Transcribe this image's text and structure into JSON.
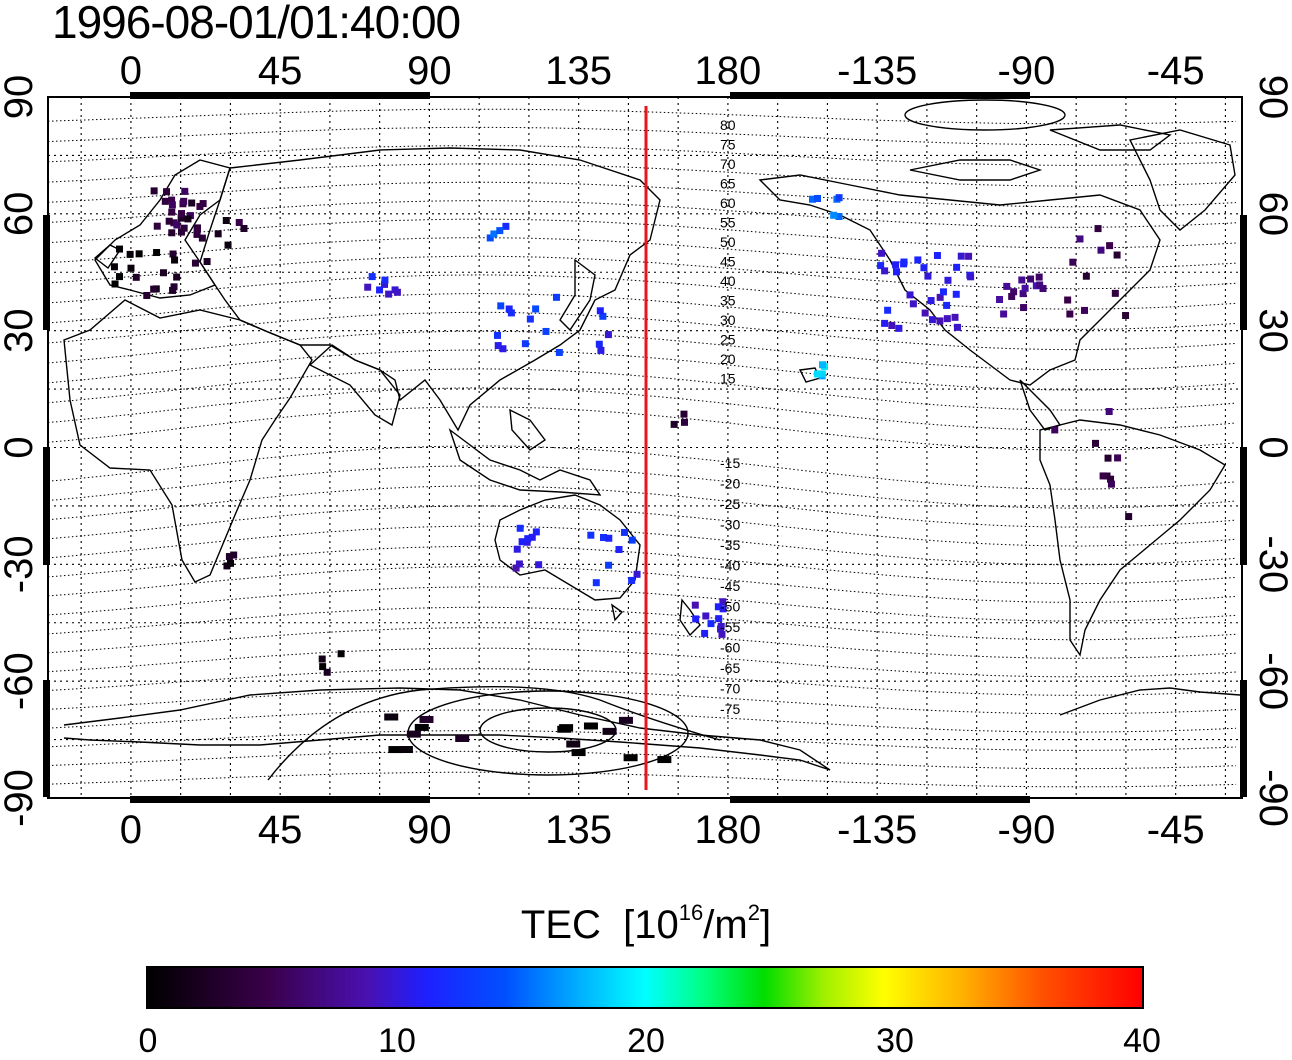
{
  "timestamp": "1996-08-01/01:40:00",
  "map": {
    "projection": "equirectangular",
    "center_longitude": 143,
    "terminator_longitude": 155,
    "terminator_color": "#e8141e",
    "top_lon_labels": [
      "0",
      "45",
      "90",
      "135",
      "180",
      "-135",
      "-90",
      "-45"
    ],
    "bottom_lon_labels": [
      "0",
      "45",
      "90",
      "135",
      "180",
      "-135",
      "-90",
      "-45"
    ],
    "left_lat_labels": [
      "90",
      "60",
      "30",
      "0",
      "-30",
      "-60",
      "-90"
    ],
    "right_lat_labels": [
      "90",
      "60",
      "30",
      "0",
      "-30",
      "-60",
      "-90"
    ],
    "contour_labels_north": [
      "80",
      "75",
      "70",
      "65",
      "60",
      "55",
      "50",
      "45",
      "40",
      "35",
      "30",
      "25",
      "20",
      "15"
    ],
    "contour_labels_south": [
      "-15",
      "-20",
      "-25",
      "-30",
      "-35",
      "-40",
      "-45",
      "-50",
      "-55",
      "-60",
      "-65",
      "-70",
      "-75"
    ]
  },
  "colorbar": {
    "title": "TEC",
    "unit_base": "[10",
    "unit_exp": "16",
    "unit_mid": "/m",
    "unit_exp2": "2",
    "unit_end": "]",
    "ticks": [
      "0",
      "10",
      "20",
      "30",
      "40"
    ],
    "range": [
      0,
      40
    ],
    "colormap": "jet-like"
  },
  "chart_data": {
    "type": "heatmap",
    "title": "1996-08-01/01:40:00",
    "xlabel": "",
    "ylabel": "",
    "xlim_lon": [
      -25,
      335
    ],
    "ylim_lat": [
      -90,
      90
    ],
    "value_label": "TEC [10^16/m^2]",
    "clusters": [
      {
        "lon": 15,
        "lat": 60,
        "count": 24,
        "spread_lon": 8,
        "spread_lat": 7,
        "tec": 4
      },
      {
        "lon": 5,
        "lat": 45,
        "count": 18,
        "spread_lon": 10,
        "spread_lat": 6,
        "tec": 1.5
      },
      {
        "lon": 25,
        "lat": 52,
        "count": 10,
        "spread_lon": 10,
        "spread_lat": 8,
        "tec": 3
      },
      {
        "lon": 75,
        "lat": 40,
        "count": 8,
        "spread_lon": 6,
        "spread_lat": 4,
        "tec": 10
      },
      {
        "lon": 120,
        "lat": 32,
        "count": 12,
        "spread_lon": 10,
        "spread_lat": 8,
        "tec": 12
      },
      {
        "lon": 112,
        "lat": 55,
        "count": 4,
        "spread_lon": 5,
        "spread_lat": 2,
        "tec": 13
      },
      {
        "lon": 145,
        "lat": 30,
        "count": 5,
        "spread_lon": 5,
        "spread_lat": 6,
        "tec": 11
      },
      {
        "lon": 118,
        "lat": -25,
        "count": 10,
        "spread_lon": 5,
        "spread_lat": 6,
        "tec": 10
      },
      {
        "lon": 145,
        "lat": -30,
        "count": 10,
        "spread_lon": 8,
        "spread_lat": 9,
        "tec": 11
      },
      {
        "lon": 174,
        "lat": -42,
        "count": 12,
        "spread_lon": 5,
        "spread_lat": 6,
        "tec": 10
      },
      {
        "lon": 208,
        "lat": 20,
        "count": 5,
        "spread_lon": 2,
        "spread_lat": 2,
        "tec": 18
      },
      {
        "lon": 207,
        "lat": 62,
        "count": 6,
        "spread_lon": 8,
        "spread_lat": 3,
        "tec": 14
      },
      {
        "lon": 240,
        "lat": 40,
        "count": 34,
        "spread_lon": 14,
        "spread_lat": 10,
        "tec": 10
      },
      {
        "lon": 268,
        "lat": 40,
        "count": 14,
        "spread_lon": 8,
        "spread_lat": 6,
        "tec": 7
      },
      {
        "lon": 290,
        "lat": 45,
        "count": 12,
        "spread_lon": 10,
        "spread_lat": 12,
        "tec": 5
      },
      {
        "lon": 290,
        "lat": -10,
        "count": 10,
        "spread_lon": 12,
        "spread_lat": 20,
        "tec": 5
      },
      {
        "lon": 165,
        "lat": 8,
        "count": 3,
        "spread_lon": 2,
        "spread_lat": 4,
        "tec": 3
      },
      {
        "lon": 60,
        "lat": -55,
        "count": 4,
        "spread_lon": 6,
        "spread_lat": 3,
        "tec": 2
      },
      {
        "lon": 30,
        "lat": -30,
        "count": 4,
        "spread_lon": 4,
        "spread_lat": 3,
        "tec": 1
      },
      {
        "lon": 120,
        "lat": -75,
        "count": 16,
        "spread_lon": 45,
        "spread_lat": 6,
        "tec": 1
      }
    ]
  }
}
